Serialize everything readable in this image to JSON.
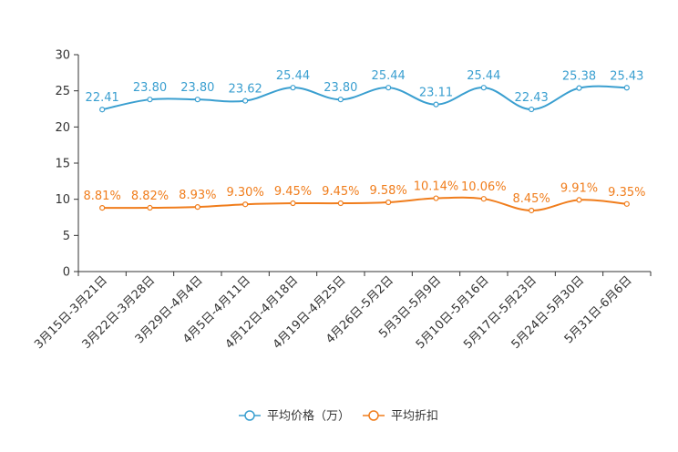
{
  "chart_data": {
    "type": "line",
    "title": "",
    "xlabel": "",
    "ylabel": "",
    "ylim": [
      0,
      30
    ],
    "yticks": [
      0,
      5,
      10,
      15,
      20,
      25,
      30
    ],
    "categories": [
      "3月15日-3月21日",
      "3月22日-3月28日",
      "3月29日-4月4日",
      "4月5日-4月11日",
      "4月12日-4月18日",
      "4月19日-4月25日",
      "4月26日-5月2日",
      "5月3日-5月9日",
      "5月10日-5月16日",
      "5月17日-5月23日",
      "5月24日-5月30日",
      "5月31日-6月6日"
    ],
    "series": [
      {
        "name": "平均价格（万）",
        "color": "#3a9fd0",
        "values": [
          22.41,
          23.8,
          23.8,
          23.62,
          25.44,
          23.8,
          25.44,
          23.11,
          25.44,
          22.43,
          25.38,
          25.43
        ],
        "labels": [
          "22.41",
          "23.80",
          "23.80",
          "23.62",
          "25.44",
          "23.80",
          "25.44",
          "23.11",
          "25.44",
          "22.43",
          "25.38",
          "25.43"
        ]
      },
      {
        "name": "平均折扣",
        "color": "#f07d1c",
        "values": [
          8.81,
          8.82,
          8.93,
          9.3,
          9.45,
          9.45,
          9.58,
          10.14,
          10.06,
          8.45,
          9.91,
          9.35
        ],
        "labels": [
          "8.81%",
          "8.82%",
          "8.93%",
          "9.30%",
          "9.45%",
          "9.45%",
          "9.58%",
          "10.14%",
          "10.06%",
          "8.45%",
          "9.91%",
          "9.35%"
        ]
      }
    ],
    "legend_position": "bottom-center",
    "grid": false
  }
}
